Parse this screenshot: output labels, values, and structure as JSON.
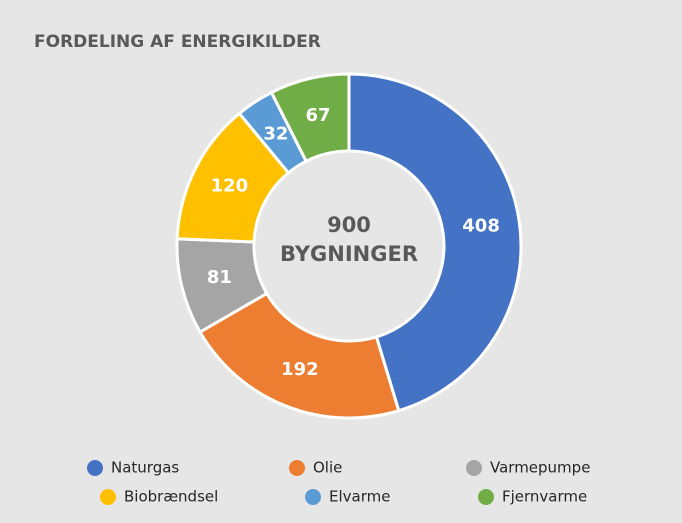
{
  "chart_data": {
    "type": "donut",
    "title": "FORDELING AF ENERGIKILDER",
    "center_value": 900,
    "center_label": "BYGNINGER",
    "categories": [
      "Naturgas",
      "Olie",
      "Varmepumpe",
      "Biobrændsel",
      "Elvarme",
      "Fjernvarme"
    ],
    "values": [
      408,
      192,
      81,
      120,
      32,
      67
    ],
    "colors": [
      "#4472c4",
      "#ed7d31",
      "#a5a5a5",
      "#ffc000",
      "#5b9bd5",
      "#70ad47"
    ],
    "legend": "bottom"
  }
}
